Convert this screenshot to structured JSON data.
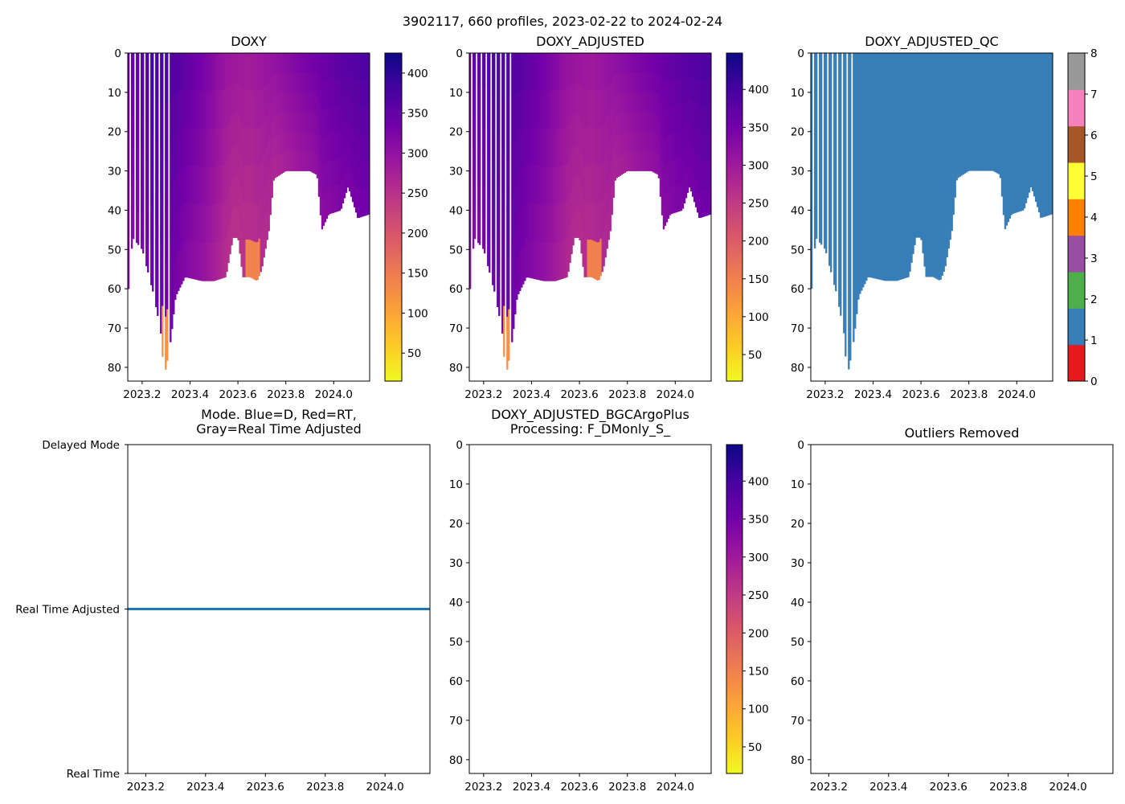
{
  "figure": {
    "suptitle": "3902117, 660 profiles, 2023-02-22 to 2024-02-24"
  },
  "colors": {
    "plasma": [
      "#f0f921",
      "#fdca26",
      "#fb9f3a",
      "#ed7953",
      "#d8576b",
      "#bd3786",
      "#9c179e",
      "#7201a8",
      "#46039f",
      "#0d0887"
    ],
    "qc": [
      "#e41a1c",
      "#377eb8",
      "#4daf4a",
      "#984ea3",
      "#ff7f00",
      "#ffff33",
      "#a65628",
      "#f781bf",
      "#999999"
    ],
    "mode_line": "#1f77b4"
  },
  "chart_data": [
    {
      "id": "doxy",
      "type": "heatmap",
      "title": "DOXY",
      "xlim": [
        2023.14,
        2024.15
      ],
      "ylim": [
        83.5,
        0
      ],
      "xticks": [
        "2023.2",
        "2023.4",
        "2023.6",
        "2023.8",
        "2024.0"
      ],
      "yticks": [
        "0",
        "10",
        "20",
        "30",
        "40",
        "50",
        "60",
        "70",
        "80"
      ],
      "colorbar": {
        "range": [
          15,
          425
        ],
        "ticks": [
          "50",
          "100",
          "150",
          "200",
          "250",
          "300",
          "350",
          "400"
        ],
        "cmap": "plasma"
      },
      "bottom_depth": [
        [
          2023.145,
          60
        ],
        [
          2023.16,
          47
        ],
        [
          2023.2,
          50
        ],
        [
          2023.25,
          62
        ],
        [
          2023.28,
          72
        ],
        [
          2023.29,
          83
        ],
        [
          2023.3,
          80
        ],
        [
          2023.32,
          73
        ],
        [
          2023.34,
          62
        ],
        [
          2023.38,
          57
        ],
        [
          2023.45,
          58
        ],
        [
          2023.5,
          58
        ],
        [
          2023.55,
          57
        ],
        [
          2023.58,
          47
        ],
        [
          2023.6,
          47
        ],
        [
          2023.62,
          57
        ],
        [
          2023.65,
          57
        ],
        [
          2023.68,
          58
        ],
        [
          2023.7,
          55
        ],
        [
          2023.73,
          45
        ],
        [
          2023.75,
          32
        ],
        [
          2023.8,
          30
        ],
        [
          2023.85,
          30
        ],
        [
          2023.9,
          30
        ],
        [
          2023.93,
          31
        ],
        [
          2023.95,
          45
        ],
        [
          2023.98,
          41
        ],
        [
          2024.03,
          40
        ],
        [
          2024.06,
          34
        ],
        [
          2024.1,
          42
        ],
        [
          2024.15,
          41
        ]
      ],
      "values": [
        [
          2023.15,
          340
        ],
        [
          2023.25,
          380
        ],
        [
          2023.35,
          360
        ],
        [
          2023.45,
          330
        ],
        [
          2023.55,
          290
        ],
        [
          2023.65,
          280
        ],
        [
          2023.75,
          300
        ],
        [
          2023.85,
          320
        ],
        [
          2023.95,
          340
        ],
        [
          2024.05,
          360
        ],
        [
          2024.15,
          370
        ]
      ],
      "low_patches": [
        [
          2023.3,
          75,
          120
        ],
        [
          2023.66,
          52,
          140
        ]
      ]
    },
    {
      "id": "doxy_adjusted",
      "type": "heatmap",
      "title": "DOXY_ADJUSTED",
      "xlim": [
        2023.14,
        2024.15
      ],
      "ylim": [
        83.5,
        0
      ],
      "xticks": [
        "2023.2",
        "2023.4",
        "2023.6",
        "2023.8",
        "2024.0"
      ],
      "yticks": [
        "0",
        "10",
        "20",
        "30",
        "40",
        "50",
        "60",
        "70",
        "80"
      ],
      "colorbar": {
        "range": [
          15,
          448
        ],
        "ticks": [
          "50",
          "100",
          "150",
          "200",
          "250",
          "300",
          "350",
          "400"
        ],
        "cmap": "plasma"
      },
      "bottom_depth": [
        [
          2023.145,
          60
        ],
        [
          2023.16,
          47
        ],
        [
          2023.2,
          50
        ],
        [
          2023.25,
          62
        ],
        [
          2023.28,
          72
        ],
        [
          2023.29,
          83
        ],
        [
          2023.3,
          80
        ],
        [
          2023.32,
          73
        ],
        [
          2023.34,
          62
        ],
        [
          2023.38,
          57
        ],
        [
          2023.45,
          58
        ],
        [
          2023.5,
          58
        ],
        [
          2023.55,
          57
        ],
        [
          2023.58,
          47
        ],
        [
          2023.6,
          47
        ],
        [
          2023.62,
          57
        ],
        [
          2023.65,
          57
        ],
        [
          2023.68,
          58
        ],
        [
          2023.7,
          55
        ],
        [
          2023.73,
          45
        ],
        [
          2023.75,
          32
        ],
        [
          2023.8,
          30
        ],
        [
          2023.85,
          30
        ],
        [
          2023.9,
          30
        ],
        [
          2023.93,
          31
        ],
        [
          2023.95,
          45
        ],
        [
          2023.98,
          41
        ],
        [
          2024.03,
          40
        ],
        [
          2024.06,
          34
        ],
        [
          2024.1,
          42
        ],
        [
          2024.15,
          41
        ]
      ],
      "values": [
        [
          2023.15,
          360
        ],
        [
          2023.25,
          400
        ],
        [
          2023.35,
          380
        ],
        [
          2023.45,
          350
        ],
        [
          2023.55,
          310
        ],
        [
          2023.65,
          300
        ],
        [
          2023.75,
          320
        ],
        [
          2023.85,
          340
        ],
        [
          2023.95,
          360
        ],
        [
          2024.05,
          380
        ],
        [
          2024.15,
          390
        ]
      ],
      "low_patches": [
        [
          2023.3,
          75,
          130
        ],
        [
          2023.66,
          52,
          150
        ]
      ]
    },
    {
      "id": "doxy_adjusted_qc",
      "type": "heatmap",
      "title": "DOXY_ADJUSTED_QC",
      "xlim": [
        2023.14,
        2024.15
      ],
      "ylim": [
        83.5,
        0
      ],
      "xticks": [
        "2023.2",
        "2023.4",
        "2023.6",
        "2023.8",
        "2024.0"
      ],
      "yticks": [
        "0",
        "10",
        "20",
        "30",
        "40",
        "50",
        "60",
        "70",
        "80"
      ],
      "colorbar": {
        "range": [
          0,
          8
        ],
        "ticks": [
          "0",
          "1",
          "2",
          "3",
          "4",
          "5",
          "6",
          "7",
          "8"
        ],
        "cmap": "qc"
      },
      "qc_value": 1,
      "bottom_depth": [
        [
          2023.145,
          60
        ],
        [
          2023.16,
          47
        ],
        [
          2023.2,
          50
        ],
        [
          2023.25,
          62
        ],
        [
          2023.28,
          72
        ],
        [
          2023.29,
          83
        ],
        [
          2023.3,
          80
        ],
        [
          2023.32,
          73
        ],
        [
          2023.34,
          62
        ],
        [
          2023.38,
          57
        ],
        [
          2023.45,
          58
        ],
        [
          2023.5,
          58
        ],
        [
          2023.55,
          57
        ],
        [
          2023.58,
          47
        ],
        [
          2023.6,
          47
        ],
        [
          2023.62,
          57
        ],
        [
          2023.65,
          57
        ],
        [
          2023.68,
          58
        ],
        [
          2023.7,
          55
        ],
        [
          2023.73,
          45
        ],
        [
          2023.75,
          32
        ],
        [
          2023.8,
          30
        ],
        [
          2023.85,
          30
        ],
        [
          2023.9,
          30
        ],
        [
          2023.93,
          31
        ],
        [
          2023.95,
          45
        ],
        [
          2023.98,
          41
        ],
        [
          2024.03,
          40
        ],
        [
          2024.06,
          34
        ],
        [
          2024.1,
          42
        ],
        [
          2024.15,
          41
        ]
      ]
    },
    {
      "id": "mode",
      "type": "line",
      "title": "Mode. Blue=D, Red=RT,",
      "title2": "Gray=Real Time Adjusted",
      "xlim": [
        2023.14,
        2024.15
      ],
      "ylim": [
        0,
        2
      ],
      "xticks": [
        "2023.2",
        "2023.4",
        "2023.6",
        "2023.8",
        "2024.0"
      ],
      "ytick_labels": [
        "Delayed Mode",
        "Real Time Adjusted",
        "Real Time"
      ],
      "series": [
        {
          "name": "mode",
          "x": [
            2023.14,
            2024.15
          ],
          "y": [
            1,
            1
          ]
        }
      ]
    },
    {
      "id": "bgcargoplus",
      "type": "heatmap",
      "title": "DOXY_ADJUSTED_BGCArgoPlus",
      "title2": "Processing: F_DMonly_S_",
      "xlim": [
        2023.14,
        2024.15
      ],
      "ylim": [
        83.5,
        0
      ],
      "xticks": [
        "2023.2",
        "2023.4",
        "2023.6",
        "2023.8",
        "2024.0"
      ],
      "yticks": [
        "0",
        "10",
        "20",
        "30",
        "40",
        "50",
        "60",
        "70",
        "80"
      ],
      "colorbar": {
        "range": [
          15,
          448
        ],
        "ticks": [
          "50",
          "100",
          "150",
          "200",
          "250",
          "300",
          "350",
          "400"
        ],
        "cmap": "plasma"
      }
    },
    {
      "id": "outliers",
      "type": "scatter",
      "title": "Outliers Removed",
      "xlim": [
        2023.14,
        2024.15
      ],
      "ylim": [
        83.5,
        0
      ],
      "xticks": [
        "2023.2",
        "2023.4",
        "2023.6",
        "2023.8",
        "2024.0"
      ],
      "yticks": [
        "0",
        "10",
        "20",
        "30",
        "40",
        "50",
        "60",
        "70",
        "80"
      ]
    }
  ]
}
